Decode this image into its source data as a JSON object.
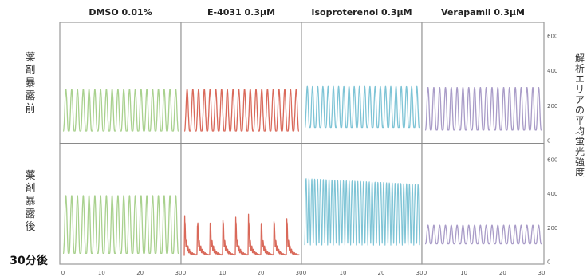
{
  "chart_data": {
    "type": "line",
    "title": "",
    "columns": [
      "DMSO 0.01%",
      "E-4031 0.3μM",
      "Isoproterenol 0.3μM",
      "Verapamil 0.3μM"
    ],
    "rows": [
      "薬剤暴露前",
      "薬剤暴露後"
    ],
    "row_note": "30分後",
    "ylabel": "解析エリアの平均蛍光強度",
    "xlim": [
      0,
      30
    ],
    "ylim": [
      0,
      600
    ],
    "xticks": [
      "0",
      "10",
      "20",
      "30"
    ],
    "yticks": [
      "0",
      "200",
      "400",
      "600"
    ],
    "colors": [
      "#a9d18e",
      "#d9695a",
      "#7ec4d6",
      "#a99cc8"
    ],
    "panels": [
      {
        "row": 0,
        "col": 0,
        "name": "DMSO 0.01% 薬剤暴露前",
        "baseline": 55,
        "peak": 295,
        "beats": 20,
        "shape": "regular"
      },
      {
        "row": 0,
        "col": 1,
        "name": "E-4031 0.3μM 薬剤暴露前",
        "baseline": 55,
        "peak": 295,
        "beats": 20,
        "shape": "regular"
      },
      {
        "row": 0,
        "col": 2,
        "name": "Isoproterenol 0.3μM 薬剤暴露前",
        "baseline": 75,
        "peak": 310,
        "beats": 22,
        "shape": "regular"
      },
      {
        "row": 0,
        "col": 3,
        "name": "Verapamil 0.3μM 薬剤暴露前",
        "baseline": 60,
        "peak": 305,
        "beats": 20,
        "shape": "regular"
      },
      {
        "row": 1,
        "col": 0,
        "name": "DMSO 0.01% 薬剤暴露後",
        "baseline": 50,
        "peak": 390,
        "beats": 20,
        "shape": "regular"
      },
      {
        "row": 1,
        "col": 1,
        "name": "E-4031 0.3μM 薬剤暴露後",
        "baseline": 35,
        "peak": 280,
        "beats": 9,
        "shape": "ead"
      },
      {
        "row": 1,
        "col": 2,
        "name": "Isoproterenol 0.3μM 薬剤暴露後",
        "baseline": 90,
        "peak_start": 490,
        "peak_end": 455,
        "beats": 40,
        "shape": "fast"
      },
      {
        "row": 1,
        "col": 3,
        "name": "Verapamil 0.3μM 薬剤暴露後",
        "baseline": 105,
        "peak": 215,
        "beats": 20,
        "shape": "regular"
      }
    ]
  }
}
